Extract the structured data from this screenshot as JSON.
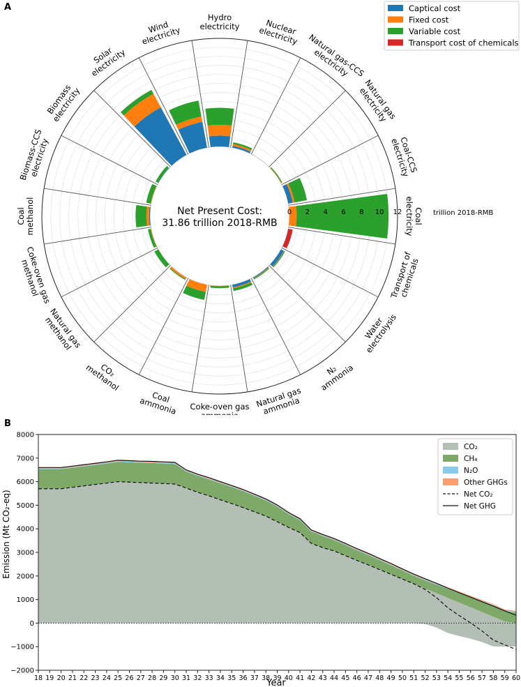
{
  "chart_data": [
    {
      "panel": "A",
      "type": "bar",
      "subtype": "polar-stacked",
      "center_title": [
        "Net Present Cost:",
        "31.86 trillion 2018-RMB"
      ],
      "unit": "trillion 2018-RMB",
      "radial_ticks": [
        "0",
        "2",
        "4",
        "6",
        "8",
        "10",
        "12"
      ],
      "rlim": [
        0,
        12
      ],
      "legend": {
        "placement": "top-right"
      },
      "series": [
        {
          "name": "Captical cost",
          "color": "#1f77b4"
        },
        {
          "name": "Fixed cost",
          "color": "#ff7f0e"
        },
        {
          "name": "Variable cost",
          "color": "#2ca02c"
        },
        {
          "name": "Transport cost of chemicals",
          "color": "#d62728"
        }
      ],
      "categories": [
        {
          "label": [
            "Coal",
            "electricity"
          ],
          "values": [
            0,
            0.8,
            10.2,
            0
          ]
        },
        {
          "label": [
            "Coal-CCS",
            "electricity"
          ],
          "values": [
            0.5,
            0.2,
            1.4,
            0
          ]
        },
        {
          "label": [
            "Natural gas",
            "electricity"
          ],
          "values": [
            0,
            0.05,
            0.1,
            0
          ]
        },
        {
          "label": [
            "Natural gas-CCS",
            "electricity"
          ],
          "values": [
            0,
            0,
            0,
            0
          ]
        },
        {
          "label": [
            "Nuclear",
            "electricity"
          ],
          "values": [
            0.2,
            0.2,
            0.2,
            0
          ]
        },
        {
          "label": [
            "Hydro",
            "electricity"
          ],
          "values": [
            1.2,
            1.2,
            1.9,
            0
          ]
        },
        {
          "label": [
            "Wind",
            "electricity"
          ],
          "values": [
            2.9,
            0.6,
            1.8,
            0
          ]
        },
        {
          "label": [
            "Solar",
            "electricity"
          ],
          "values": [
            6.0,
            1.7,
            0.5,
            0
          ]
        },
        {
          "label": [
            "Biomass",
            "electricity"
          ],
          "values": [
            0.05,
            0,
            0.3,
            0
          ]
        },
        {
          "label": [
            "Biomass-CCS",
            "electricity"
          ],
          "values": [
            0,
            0.05,
            0.5,
            0
          ]
        },
        {
          "label": [
            "Coal",
            "methanol"
          ],
          "values": [
            0.1,
            0.3,
            1.2,
            0
          ]
        },
        {
          "label": [
            "Coke-oven gas",
            "methanol"
          ],
          "values": [
            0,
            0.05,
            0.3,
            0
          ]
        },
        {
          "label": [
            "Natural gas",
            "methanol"
          ],
          "values": [
            0,
            0,
            0.5,
            0
          ]
        },
        {
          "label": [
            "CO₂",
            "methanol"
          ],
          "values": [
            0,
            0.2,
            0.1,
            0
          ]
        },
        {
          "label": [
            "Coal",
            "ammonia"
          ],
          "values": [
            0,
            0.8,
            0.9,
            0
          ]
        },
        {
          "label": [
            "Coke-oven gas",
            "ammonia"
          ],
          "values": [
            0,
            0.05,
            0.2,
            0
          ]
        },
        {
          "label": [
            "Natural gas",
            "ammonia"
          ],
          "values": [
            0.3,
            0.1,
            0.3,
            0
          ]
        },
        {
          "label": [
            "N₂",
            "ammonia"
          ],
          "values": [
            0.1,
            0.05,
            0.1,
            0
          ]
        },
        {
          "label": [
            "Water",
            "electrolysis"
          ],
          "values": [
            0.35,
            0.05,
            0.1,
            0
          ]
        },
        {
          "label": [
            "Transport of",
            "chemicals"
          ],
          "values": [
            0,
            0,
            0,
            0.5
          ]
        }
      ]
    },
    {
      "panel": "B",
      "type": "area",
      "xlabel": "Year",
      "ylabel": "Emission (Mt CO₂-eq)",
      "ylim": [
        -2000,
        8000
      ],
      "yticks": [
        "−2000",
        "−1000",
        "0",
        "1000",
        "2000",
        "3000",
        "4000",
        "5000",
        "6000",
        "7000",
        "8000"
      ],
      "x": [
        "18",
        "19",
        "20",
        "21",
        "22",
        "23",
        "24",
        "25",
        "26",
        "27",
        "28",
        "29",
        "30",
        "31",
        "32",
        "33",
        "34",
        "35",
        "36",
        "37",
        "38",
        "39",
        "40",
        "41",
        "42",
        "43",
        "44",
        "45",
        "46",
        "47",
        "48",
        "49",
        "50",
        "51",
        "52",
        "53",
        "54",
        "55",
        "56",
        "57",
        "58",
        "59",
        "60"
      ],
      "legend": {
        "placement": "top-right"
      },
      "series": [
        {
          "name": "CO₂",
          "kind": "area",
          "color": "#b3bfb5",
          "values": [
            5700,
            5700,
            5700,
            5760,
            5820,
            5880,
            5940,
            6000,
            5980,
            5960,
            5940,
            5920,
            5900,
            5730,
            5550,
            5400,
            5230,
            5070,
            4900,
            4720,
            4540,
            4300,
            4060,
            3840,
            3380,
            3200,
            3060,
            2860,
            2660,
            2470,
            2270,
            2070,
            1870,
            1670,
            1470,
            1270,
            1070,
            870,
            670,
            470,
            270,
            70,
            -130
          ],
          "neg_values": [
            0,
            0,
            0,
            0,
            0,
            0,
            0,
            0,
            0,
            0,
            0,
            0,
            0,
            0,
            0,
            0,
            0,
            0,
            0,
            0,
            0,
            0,
            0,
            0,
            0,
            0,
            0,
            0,
            0,
            0,
            0,
            0,
            0,
            0,
            -40,
            -190,
            -420,
            -550,
            -660,
            -800,
            -990,
            -990,
            -990
          ]
        },
        {
          "name": "CH₄",
          "kind": "area",
          "color": "#7ea968",
          "values": [
            830,
            830,
            830,
            830,
            830,
            830,
            830,
            840,
            840,
            840,
            850,
            850,
            850,
            700,
            700,
            700,
            700,
            700,
            700,
            680,
            660,
            640,
            560,
            520,
            500,
            490,
            460,
            450,
            430,
            420,
            400,
            380,
            360,
            340,
            340,
            360,
            380,
            400,
            420,
            440,
            460,
            440,
            450
          ]
        },
        {
          "name": "N₂O",
          "kind": "area",
          "color": "#87cdeb",
          "values": [
            30,
            30,
            30,
            30,
            30,
            30,
            30,
            30,
            30,
            30,
            30,
            30,
            30,
            30,
            30,
            30,
            30,
            30,
            30,
            30,
            30,
            30,
            30,
            30,
            30,
            30,
            30,
            30,
            30,
            30,
            30,
            30,
            30,
            30,
            30,
            30,
            30,
            30,
            30,
            30,
            30,
            30,
            30
          ]
        },
        {
          "name": "Other GHGs",
          "kind": "area",
          "color": "#fd9d6e",
          "values": [
            40,
            40,
            40,
            40,
            40,
            40,
            40,
            40,
            40,
            40,
            40,
            40,
            40,
            40,
            40,
            40,
            40,
            40,
            40,
            40,
            40,
            40,
            40,
            40,
            40,
            40,
            40,
            40,
            40,
            40,
            40,
            40,
            40,
            40,
            40,
            40,
            40,
            40,
            40,
            40,
            40,
            40,
            40
          ]
        },
        {
          "name": "Net CO₂",
          "kind": "line",
          "style": "dashed",
          "values": [
            5700,
            5700,
            5700,
            5760,
            5820,
            5880,
            5940,
            6000,
            5980,
            5960,
            5940,
            5920,
            5900,
            5730,
            5550,
            5400,
            5230,
            5070,
            4900,
            4720,
            4540,
            4300,
            4060,
            3840,
            3380,
            3200,
            3060,
            2860,
            2660,
            2470,
            2270,
            2070,
            1870,
            1670,
            1430,
            1080,
            650,
            320,
            10,
            -330,
            -720,
            -920,
            -1120
          ]
        },
        {
          "name": "Net GHG",
          "kind": "line",
          "style": "solid",
          "values": [
            6600,
            6600,
            6600,
            6660,
            6720,
            6780,
            6840,
            6910,
            6890,
            6870,
            6860,
            6840,
            6820,
            6500,
            6320,
            6170,
            6000,
            5840,
            5670,
            5470,
            5270,
            5010,
            4690,
            4430,
            3950,
            3760,
            3590,
            3380,
            3160,
            2960,
            2740,
            2530,
            2300,
            2080,
            1880,
            1690,
            1480,
            1290,
            1100,
            910,
            720,
            520,
            330
          ]
        }
      ]
    }
  ]
}
